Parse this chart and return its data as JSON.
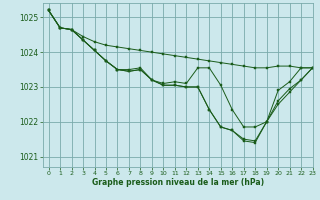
{
  "title": "Graphe pression niveau de la mer (hPa)",
  "background_color": "#cce8ec",
  "grid_color": "#7aabab",
  "line_color": "#1a5c1a",
  "marker_color": "#1a5c1a",
  "xlim": [
    -0.5,
    23
  ],
  "ylim": [
    1020.7,
    1025.4
  ],
  "yticks": [
    1021,
    1022,
    1023,
    1024,
    1025
  ],
  "xticks": [
    0,
    1,
    2,
    3,
    4,
    5,
    6,
    7,
    8,
    9,
    10,
    11,
    12,
    13,
    14,
    15,
    16,
    17,
    18,
    19,
    20,
    21,
    22,
    23
  ],
  "series": [
    [
      1025.2,
      1024.7,
      1024.65,
      1024.45,
      1024.3,
      1024.2,
      1024.15,
      1024.1,
      1024.05,
      1024.0,
      1023.95,
      1023.9,
      1023.85,
      1023.8,
      1023.75,
      1023.7,
      1023.65,
      1023.6,
      1023.55,
      1023.55,
      1023.6,
      1023.6,
      1023.55,
      1023.55
    ],
    [
      1025.2,
      1024.7,
      1024.65,
      1024.35,
      1024.05,
      1023.75,
      1023.5,
      1023.5,
      1023.55,
      1023.2,
      1023.1,
      1023.15,
      1023.1,
      1023.55,
      1023.55,
      1023.05,
      1022.35,
      1021.85,
      1021.85,
      1022.0,
      1022.9,
      1023.15,
      1023.55,
      1023.55
    ],
    [
      1025.2,
      1024.7,
      1024.65,
      1024.35,
      1024.05,
      1023.75,
      1023.5,
      1023.45,
      1023.5,
      1023.2,
      1023.05,
      1023.05,
      1023.0,
      1023.0,
      1022.35,
      1021.85,
      1021.75,
      1021.5,
      1021.45,
      1022.0,
      1022.6,
      1022.95,
      1023.2,
      1023.55
    ],
    [
      1025.2,
      1024.7,
      1024.65,
      1024.35,
      1024.05,
      1023.75,
      1023.5,
      1023.45,
      1023.5,
      1023.2,
      1023.05,
      1023.05,
      1023.0,
      1023.0,
      1022.35,
      1021.85,
      1021.75,
      1021.45,
      1021.4,
      1022.0,
      1022.5,
      1022.85,
      1023.2,
      1023.55
    ]
  ],
  "marker_series": [
    0,
    1,
    2,
    3
  ],
  "marker_x": [
    [
      0,
      1,
      2,
      3,
      4,
      5,
      6,
      7,
      8,
      9,
      10,
      11,
      12,
      13,
      14,
      15,
      16,
      17,
      18,
      19,
      20,
      21,
      22,
      23
    ],
    [
      0,
      1,
      2,
      3,
      5,
      7,
      8,
      9,
      11,
      13,
      14,
      15,
      16,
      19,
      20,
      21,
      22,
      23
    ],
    [
      0,
      1,
      2,
      3,
      5,
      7,
      8,
      9,
      11,
      13,
      14,
      15,
      17,
      18,
      19,
      20,
      21,
      22,
      23
    ],
    [
      0,
      1,
      2,
      3,
      5,
      7,
      8,
      9,
      11,
      13,
      14,
      15,
      17,
      18,
      19,
      20,
      21,
      22,
      23
    ]
  ]
}
